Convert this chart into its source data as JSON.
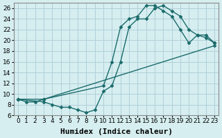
{
  "bg_color": "#d6eef0",
  "grid_color": "#b0d0d8",
  "line_color": "#1a6b6b",
  "marker": "D",
  "markersize": 2.5,
  "linewidth": 1.0,
  "xlabel": "Humidex (Indice chaleur)",
  "xlabel_fontsize": 8,
  "tick_fontsize": 6.5,
  "ylim": [
    6,
    27
  ],
  "xlim": [
    -0.5,
    23.5
  ],
  "yticks": [
    6,
    8,
    10,
    12,
    14,
    16,
    18,
    20,
    22,
    24,
    26
  ],
  "xticks": [
    0,
    1,
    2,
    3,
    4,
    5,
    6,
    7,
    8,
    9,
    10,
    11,
    12,
    13,
    14,
    15,
    16,
    17,
    18,
    19,
    20,
    21,
    22,
    23
  ],
  "line1_x": [
    0,
    1,
    2,
    3,
    10,
    11,
    12,
    13,
    14,
    15,
    16,
    17,
    18,
    19,
    20,
    21,
    22,
    23
  ],
  "line1_y": [
    9,
    8.5,
    8.5,
    9,
    11.5,
    16,
    22.5,
    24,
    24.5,
    26.5,
    26.5,
    25.5,
    24.5,
    22,
    19.5,
    21,
    20.5,
    19.5
  ],
  "line2_x": [
    0,
    3,
    23
  ],
  "line2_y": [
    9,
    9,
    19
  ],
  "line3_x": [
    0,
    3,
    4,
    5,
    6,
    7,
    8,
    9,
    10,
    11,
    12,
    13,
    14,
    15,
    16,
    17,
    18,
    19,
    20,
    21,
    22,
    23
  ],
  "line3_y": [
    9,
    8.5,
    8,
    7.5,
    7.5,
    7,
    6.5,
    7,
    10.5,
    11.5,
    16,
    22.5,
    24,
    24,
    26,
    26.5,
    25.5,
    24.5,
    22,
    21,
    21,
    19.5
  ]
}
